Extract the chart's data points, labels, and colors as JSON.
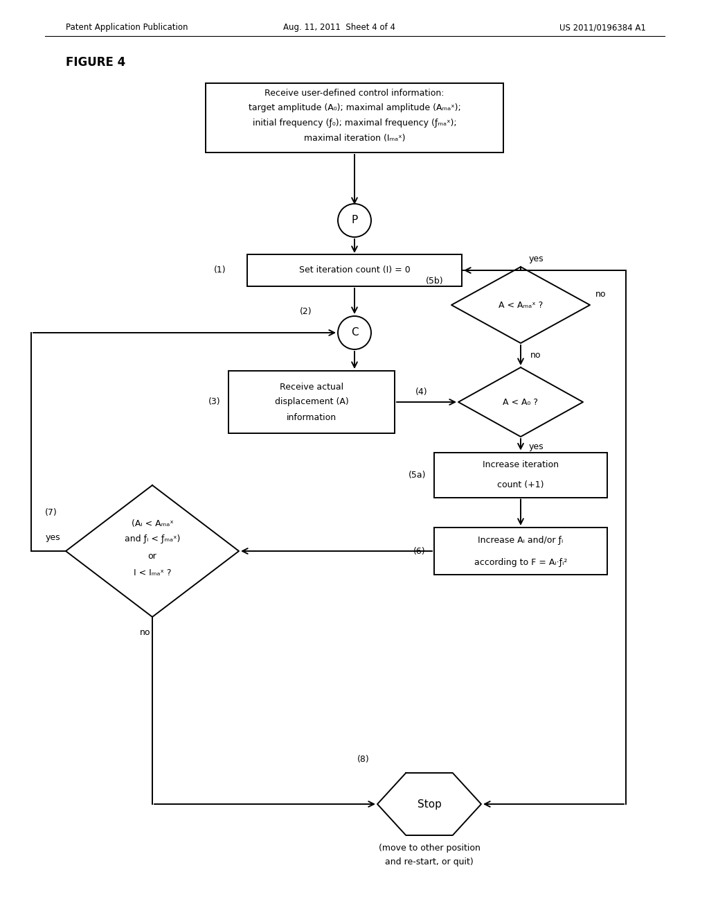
{
  "bg_color": "#ffffff",
  "header_left": "Patent Application Publication",
  "header_mid": "Aug. 11, 2011  Sheet 4 of 4",
  "header_right": "US 2011/0196384 A1",
  "figure_label": "FIGURE 4",
  "lw": 1.4,
  "fs": 10,
  "fs_small": 9,
  "rect1_text": [
    "Receive user-defined control information:",
    "target amplitude (A₀); maximal amplitude (Aₘₐˣ);",
    "initial frequency (ƒ₀); maximal frequency (ƒₘₐˣ);",
    "maximal iteration (Iₘₐˣ)"
  ],
  "rect2_text": "Set iteration count (I) = 0",
  "rect3_text": [
    "Receive actual",
    "displacement (A)",
    "information"
  ],
  "diamond5b_text": "A < Aₘₐˣ ?",
  "diamond4_text": "A < A₀ ?",
  "rect5a_text": [
    "Increase iteration",
    "count (+1)"
  ],
  "rect6_text": [
    "Increase Aᵢ and/or ƒᵢ",
    "according to F = Aᵢ·ƒᵢ²"
  ],
  "diamond7_text": [
    "(Aᵢ < Aₘₐˣ",
    "and ƒᵢ < ƒₘₐˣ)",
    "or",
    "I < Iₘₐˣ ?"
  ],
  "stop_text": "Stop",
  "stop_sub": [
    "(move to other position",
    "and re-start, or quit)"
  ]
}
